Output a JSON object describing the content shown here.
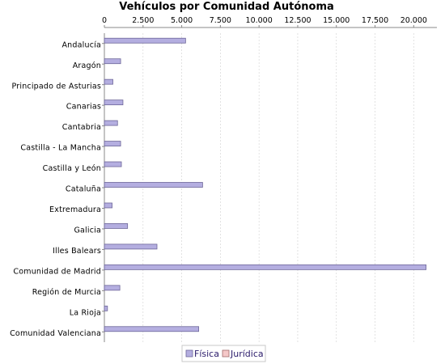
{
  "chart_data": {
    "type": "bar",
    "orientation": "horizontal",
    "title": "Vehículos por Comunidad Autónoma",
    "xlabel": "",
    "ylabel": "",
    "x_axis_position": "top",
    "xlim": [
      0,
      21500
    ],
    "x_ticks": [
      0,
      2500,
      5000,
      7500,
      10000,
      12500,
      15000,
      17500,
      20000
    ],
    "x_tick_labels": [
      "0",
      "2.500",
      "5.000",
      "7.500",
      "10.000",
      "12.500",
      "15.000",
      "17.500",
      "20.000"
    ],
    "grid": true,
    "legend_placement": "bottom-center",
    "categories": [
      "Andalucía",
      "Aragón",
      "Principado de Asturias",
      "Canarias",
      "Cantabria",
      "Castilla - La Mancha",
      "Castilla y León",
      "Cataluña",
      "Extremadura",
      "Galicia",
      "Illes Balears",
      "Comunidad de Madrid",
      "Región de Murcia",
      "La Rioja",
      "Comunidad Valenciana"
    ],
    "series": [
      {
        "name": "Física",
        "color": "#b4aee0",
        "values": [
          5250,
          1050,
          550,
          1200,
          850,
          1050,
          1100,
          6350,
          500,
          1500,
          3400,
          20800,
          1000,
          200,
          6100
        ]
      },
      {
        "name": "Jurídica",
        "color": "#f5c8c8",
        "values": [
          0,
          0,
          0,
          0,
          0,
          0,
          0,
          0,
          0,
          0,
          0,
          0,
          0,
          0,
          0
        ]
      }
    ]
  }
}
